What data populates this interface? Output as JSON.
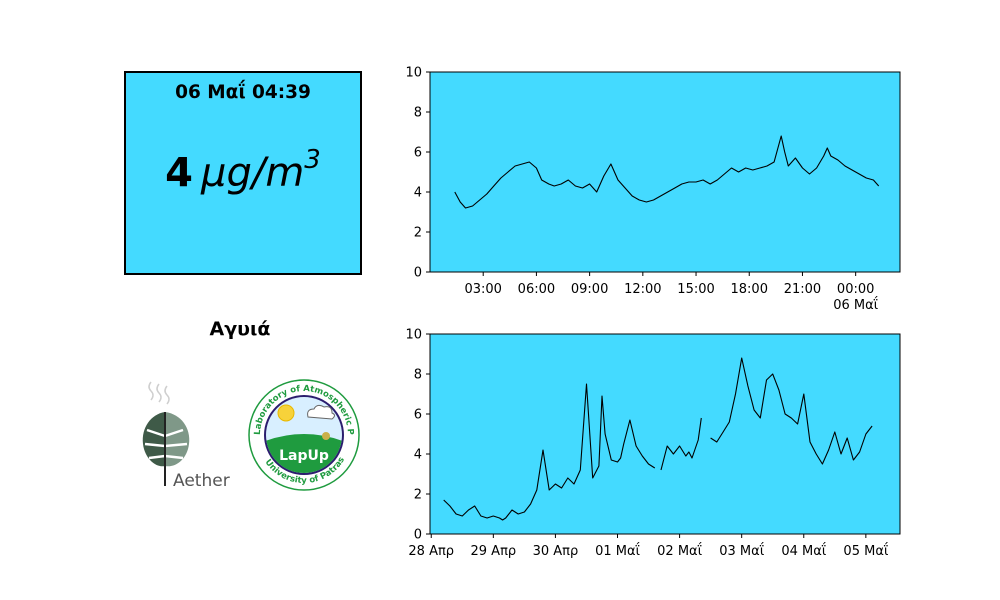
{
  "readout": {
    "timestamp": "06 Μαΐ 04:39",
    "value": "4",
    "unit": "μg/m",
    "unit_exp": "3",
    "background": "#44daff"
  },
  "station": {
    "name": "Αγυιά"
  },
  "logos": {
    "aether": {
      "text": "Aether",
      "icon": "monstera-leaf-icon"
    },
    "lapup": {
      "center_text": "LapUp",
      "ring_top": "Laboratory of Atmospheric Physics",
      "ring_bottom": "University of Patras",
      "icon": "sun-cloud-icon"
    }
  },
  "chart_data": [
    {
      "type": "line",
      "background": "#44daff",
      "line_color": "#000000",
      "x_ticks": [
        "03:00",
        "06:00",
        "09:00",
        "12:00",
        "15:00",
        "18:00",
        "21:00",
        "00:00"
      ],
      "x_secondary_label": "06 Μαΐ",
      "y_ticks": [
        "0",
        "2",
        "4",
        "6",
        "8",
        "10"
      ],
      "ylim": [
        0,
        10
      ],
      "x_range_hours": [
        0,
        26.5
      ],
      "series": [
        {
          "x_hours": [
            1.4,
            1.7,
            2.0,
            2.4,
            2.8,
            3.2,
            3.6,
            4.0,
            4.4,
            4.8,
            5.2,
            5.6,
            6.0,
            6.3,
            6.7,
            7.0,
            7.4,
            7.8,
            8.2,
            8.6,
            9.0,
            9.4,
            9.8,
            10.2,
            10.6,
            11.0,
            11.4,
            11.8,
            12.2,
            12.6,
            13.0,
            13.4,
            13.8,
            14.2,
            14.6,
            15.0,
            15.4,
            15.8,
            16.2,
            16.6,
            17.0,
            17.4,
            17.8,
            18.2,
            18.6,
            19.0,
            19.4,
            19.8,
            20.0,
            20.2,
            20.6,
            21.0,
            21.4,
            21.8,
            22.2,
            22.4,
            22.6,
            23.0,
            23.4,
            23.8,
            24.2,
            24.6,
            25.0,
            25.3
          ],
          "values": [
            4.0,
            3.5,
            3.2,
            3.3,
            3.6,
            3.9,
            4.3,
            4.7,
            5.0,
            5.3,
            5.4,
            5.5,
            5.2,
            4.6,
            4.4,
            4.3,
            4.4,
            4.6,
            4.3,
            4.2,
            4.4,
            4.0,
            4.8,
            5.4,
            4.6,
            4.2,
            3.8,
            3.6,
            3.5,
            3.6,
            3.8,
            4.0,
            4.2,
            4.4,
            4.5,
            4.5,
            4.6,
            4.4,
            4.6,
            4.9,
            5.2,
            5.0,
            5.2,
            5.1,
            5.2,
            5.3,
            5.5,
            6.8,
            6.0,
            5.3,
            5.7,
            5.2,
            4.9,
            5.2,
            5.8,
            6.2,
            5.8,
            5.6,
            5.3,
            5.1,
            4.9,
            4.7,
            4.6,
            4.3
          ]
        }
      ]
    },
    {
      "type": "line",
      "background": "#44daff",
      "line_color": "#000000",
      "x_ticks": [
        "28 Απρ",
        "29 Απρ",
        "30 Απρ",
        "01 Μαΐ",
        "02 Μαΐ",
        "03 Μαΐ",
        "04 Μαΐ",
        "05 Μαΐ"
      ],
      "y_ticks": [
        "0",
        "2",
        "4",
        "6",
        "8",
        "10"
      ],
      "ylim": [
        0,
        10
      ],
      "x_range_days": [
        -0.02,
        7.55
      ],
      "series": [
        {
          "x_days": [
            0.2,
            0.3,
            0.4,
            0.5,
            0.6,
            0.7,
            0.8,
            0.9,
            1.0,
            1.1,
            1.15,
            1.2,
            1.3,
            1.4,
            1.5,
            1.6,
            1.7,
            1.8,
            1.9,
            2.0,
            2.1,
            2.2,
            2.3,
            2.4,
            2.5,
            2.6,
            2.7,
            2.75,
            2.8,
            2.9,
            3.0,
            3.05,
            3.1,
            3.2,
            3.3,
            3.4,
            3.5,
            3.6,
            null,
            3.7,
            3.8,
            3.9,
            4.0,
            4.1,
            4.15,
            4.2,
            4.3,
            4.35,
            null,
            4.5,
            4.6,
            4.7,
            4.8,
            4.9,
            5.0,
            5.1,
            5.2,
            5.3,
            5.4,
            5.5,
            5.6,
            5.7,
            5.8,
            5.9,
            6.0,
            6.1,
            6.2,
            6.3,
            6.4,
            6.5,
            6.6,
            6.7,
            6.8,
            6.9,
            7.0,
            7.1
          ],
          "values": [
            1.7,
            1.4,
            1.0,
            0.9,
            1.2,
            1.4,
            0.9,
            0.8,
            0.9,
            0.8,
            0.7,
            0.8,
            1.2,
            1.0,
            1.1,
            1.5,
            2.2,
            4.2,
            2.2,
            2.5,
            2.3,
            2.8,
            2.5,
            3.2,
            7.5,
            2.8,
            3.4,
            6.9,
            5.0,
            3.7,
            3.6,
            3.8,
            4.5,
            5.7,
            4.4,
            3.9,
            3.5,
            3.3,
            null,
            3.2,
            4.4,
            4.0,
            4.4,
            3.9,
            4.1,
            3.8,
            4.7,
            5.8,
            null,
            4.8,
            4.6,
            5.1,
            5.6,
            7.0,
            8.8,
            7.4,
            6.2,
            5.8,
            7.7,
            8.0,
            7.2,
            6.0,
            5.8,
            5.5,
            7.0,
            4.6,
            4.0,
            3.5,
            4.2,
            5.1,
            4.0,
            4.8,
            3.7,
            4.1,
            5.0,
            5.4
          ]
        }
      ]
    }
  ]
}
